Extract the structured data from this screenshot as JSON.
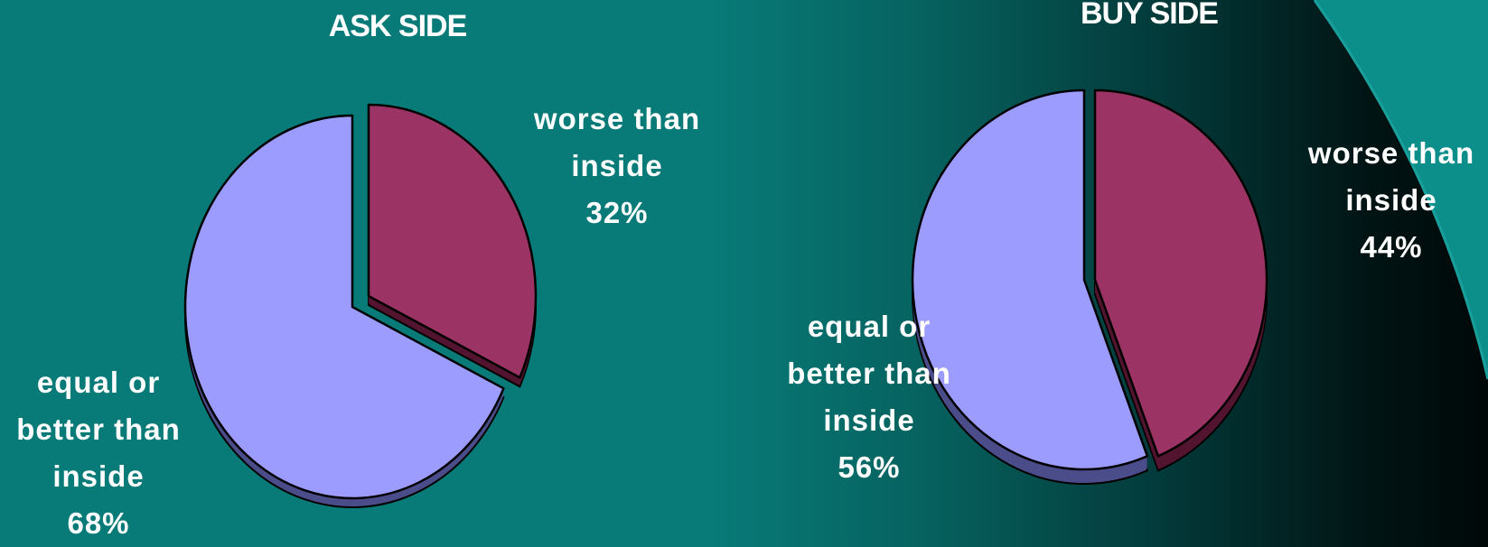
{
  "chart_data": [
    {
      "type": "pie",
      "title": "ASK SIDE",
      "slices": [
        {
          "label_lines": [
            "worse than",
            "inside",
            "32%"
          ],
          "value": 32,
          "color": "#9b3465"
        },
        {
          "label_lines": [
            "equal or",
            "better than",
            "inside",
            "68%"
          ],
          "value": 68,
          "color": "#9c9cff"
        }
      ]
    },
    {
      "type": "pie",
      "title": "BUY SIDE",
      "slices": [
        {
          "label_lines": [
            "worse than",
            "inside",
            "44%"
          ],
          "value": 44,
          "color": "#9b3465"
        },
        {
          "label_lines": [
            "equal or",
            "better than",
            "inside",
            "56%"
          ],
          "value": 56,
          "color": "#9c9cff"
        }
      ]
    }
  ],
  "colors": {
    "background_left": "#087a77",
    "background_right": "#000808",
    "slice_side_worse": "#52142f",
    "slice_side_equal": "#4b4d8a",
    "decorative_arc": "#1aa09c"
  }
}
